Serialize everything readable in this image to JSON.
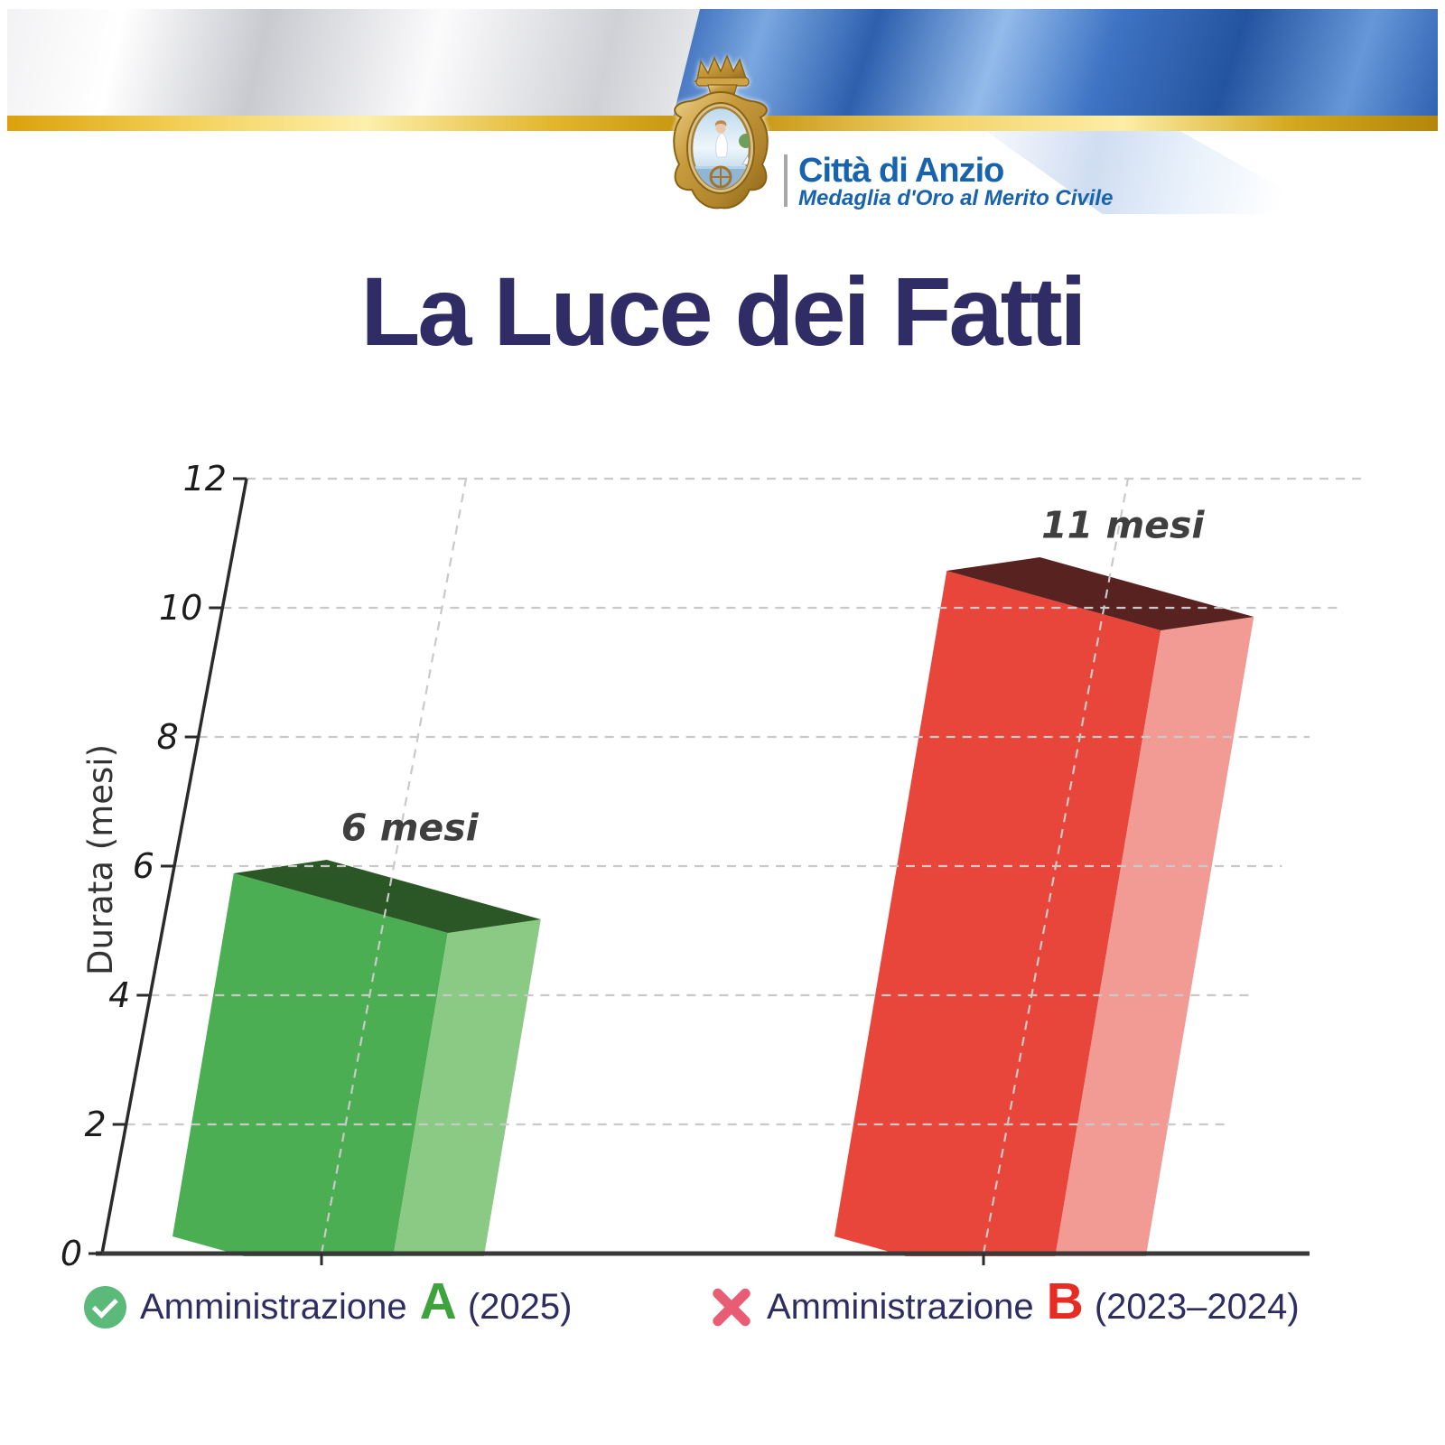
{
  "header": {
    "brand": "Città di Anzio",
    "brand_sub": "Medaglia d'Oro al Merito Civile",
    "crest_name": "anzio-coat-of-arms",
    "brand_color": "#1863ae",
    "gold_color": "#d8a91c",
    "flag_blue": "#2f62b2",
    "flag_silver": "#d8d9de"
  },
  "title": "La Luce dei Fatti",
  "title_color": "#2f2c66",
  "chart_data": {
    "type": "bar",
    "projection": "3d-oblique",
    "title": "",
    "xlabel": "",
    "ylabel": "Durata (mesi)",
    "ylim": [
      0,
      12
    ],
    "yticks": [
      0,
      2,
      4,
      6,
      8,
      10,
      12
    ],
    "grid": true,
    "categories": [
      "Amministrazione A (2025)",
      "Amministrazione B (2023–2024)"
    ],
    "values": [
      6,
      11
    ],
    "bar_labels": [
      "6 mesi",
      "11 mesi"
    ],
    "bar_colors": [
      {
        "front": "#4cae52",
        "side": "#8bca84",
        "top": "#2b5727"
      },
      {
        "front": "#e8453b",
        "side": "#f29b94",
        "top": "#572220"
      }
    ],
    "style": {
      "grid_color": "#c9c9c9",
      "axis_color": "#2b2b2b",
      "tick_label_color": "#1c1c1c",
      "value_label_color": "#3f3f3f",
      "ylabel_color": "#333333"
    }
  },
  "legend": {
    "text_color": "#2e2d62",
    "items": [
      {
        "icon": "check-circle",
        "icon_color": "#5bb97a",
        "label": "Amministrazione",
        "emph": "A",
        "emph_color": "#3ea33c",
        "suffix": "(2025)"
      },
      {
        "icon": "x-mark",
        "icon_color": "#e85d73",
        "label": "Amministrazione",
        "emph": "B",
        "emph_color": "#e52d23",
        "suffix": "(2023–2024)"
      }
    ]
  }
}
